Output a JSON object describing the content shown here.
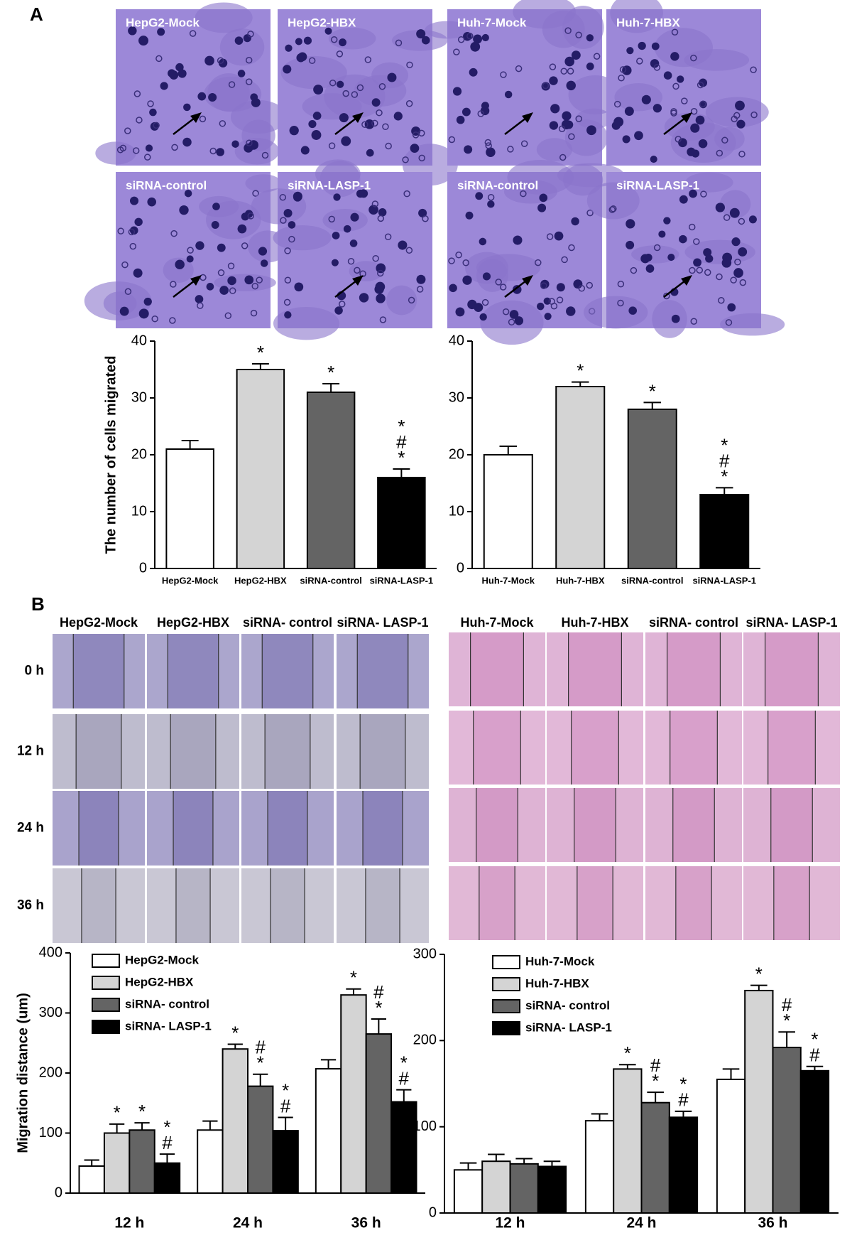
{
  "figure": {
    "panel_labels": [
      "A",
      "B"
    ],
    "panel_a_images": [
      "HepG2-Mock",
      "HepG2-HBX",
      "Huh-7-Mock",
      "Huh-7-HBX",
      "siRNA-control",
      "siRNA-LASP-1",
      "siRNA-control",
      "siRNA-LASP-1"
    ],
    "panel_b_columns": [
      "HepG2-Mock",
      "HepG2-HBX",
      "siRNA- control",
      "siRNA- LASP-1",
      "Huh-7-Mock",
      "Huh-7-HBX",
      "siRNA- control",
      "siRNA- LASP-1"
    ],
    "panel_b_rows": [
      "0 h",
      "12 h",
      "24 h",
      "36 h"
    ]
  },
  "chart_data": [
    {
      "type": "bar",
      "y_label": "The number of cells migrated",
      "categories": [
        "HepG2-Mock",
        "HepG2-HBX",
        "siRNA-control",
        "siRNA-LASP-1"
      ],
      "values": [
        21,
        35,
        31,
        16
      ],
      "errors": [
        1.5,
        1,
        1.5,
        1.5
      ],
      "colors": [
        "#ffffff",
        "#d4d4d4",
        "#646464",
        "#000000"
      ],
      "ylim": [
        0,
        40
      ],
      "yticks": [
        0,
        10,
        20,
        30,
        40
      ],
      "annotations": [
        {
          "category": 1,
          "text": [
            "*"
          ]
        },
        {
          "category": 2,
          "text": [
            "*"
          ]
        },
        {
          "category": 3,
          "text": [
            "*",
            "#",
            "*"
          ]
        }
      ]
    },
    {
      "type": "bar",
      "categories": [
        "Huh-7-Mock",
        "Huh-7-HBX",
        "siRNA-control",
        "siRNA-LASP-1"
      ],
      "values": [
        20,
        32,
        28,
        13
      ],
      "errors": [
        1.5,
        0.8,
        1.2,
        1.2
      ],
      "colors": [
        "#ffffff",
        "#d4d4d4",
        "#646464",
        "#000000"
      ],
      "ylim": [
        0,
        40
      ],
      "yticks": [
        0,
        10,
        20,
        30,
        40
      ],
      "annotations": [
        {
          "category": 1,
          "text": [
            "*"
          ]
        },
        {
          "category": 2,
          "text": [
            "*"
          ]
        },
        {
          "category": 3,
          "text": [
            "*",
            "#",
            "*"
          ]
        }
      ]
    },
    {
      "type": "bar",
      "y_label": "Migration distance (um)",
      "categories": [
        "12 h",
        "24 h",
        "36 h"
      ],
      "series": [
        {
          "name": "HepG2-Mock",
          "color": "#ffffff",
          "values": [
            45,
            105,
            207
          ],
          "errors": [
            10,
            15,
            15
          ]
        },
        {
          "name": "HepG2-HBX",
          "color": "#d4d4d4",
          "values": [
            100,
            240,
            330
          ],
          "errors": [
            15,
            8,
            10
          ]
        },
        {
          "name": "siRNA- control",
          "color": "#646464",
          "values": [
            105,
            178,
            265
          ],
          "errors": [
            12,
            20,
            25
          ]
        },
        {
          "name": "siRNA- LASP-1",
          "color": "#000000",
          "values": [
            50,
            104,
            152
          ],
          "errors": [
            15,
            22,
            20
          ]
        }
      ],
      "ylim": [
        0,
        400
      ],
      "yticks": [
        0,
        100,
        200,
        300,
        400
      ],
      "legend": "top-left",
      "annotations": [
        {
          "category": 0,
          "series": 1,
          "text": [
            "*"
          ]
        },
        {
          "category": 0,
          "series": 2,
          "text": [
            "*"
          ]
        },
        {
          "category": 0,
          "series": 3,
          "text": [
            "*",
            "#"
          ]
        },
        {
          "category": 1,
          "series": 1,
          "text": [
            "*"
          ]
        },
        {
          "category": 1,
          "series": 2,
          "text": [
            "#",
            "*"
          ]
        },
        {
          "category": 1,
          "series": 3,
          "text": [
            "*",
            "#"
          ]
        },
        {
          "category": 2,
          "series": 1,
          "text": [
            "*"
          ]
        },
        {
          "category": 2,
          "series": 2,
          "text": [
            "#",
            "*"
          ]
        },
        {
          "category": 2,
          "series": 3,
          "text": [
            "*",
            "#"
          ]
        }
      ]
    },
    {
      "type": "bar",
      "categories": [
        "12 h",
        "24 h",
        "36 h"
      ],
      "series": [
        {
          "name": "Huh-7-Mock",
          "color": "#ffffff",
          "values": [
            50,
            107,
            155
          ],
          "errors": [
            8,
            8,
            12
          ]
        },
        {
          "name": "Huh-7-HBX",
          "color": "#d4d4d4",
          "values": [
            60,
            167,
            258
          ],
          "errors": [
            8,
            5,
            6
          ]
        },
        {
          "name": "siRNA- control",
          "color": "#646464",
          "values": [
            57,
            128,
            192
          ],
          "errors": [
            6,
            12,
            18
          ]
        },
        {
          "name": "siRNA- LASP-1",
          "color": "#000000",
          "values": [
            54,
            111,
            165
          ],
          "errors": [
            6,
            7,
            5
          ]
        }
      ],
      "ylim": [
        0,
        300
      ],
      "yticks": [
        0,
        100,
        200,
        300
      ],
      "legend": "top-left",
      "annotations": [
        {
          "category": 1,
          "series": 1,
          "text": [
            "*"
          ]
        },
        {
          "category": 1,
          "series": 2,
          "text": [
            "#",
            "*"
          ]
        },
        {
          "category": 1,
          "series": 3,
          "text": [
            "*",
            "#"
          ]
        },
        {
          "category": 2,
          "series": 1,
          "text": [
            "*"
          ]
        },
        {
          "category": 2,
          "series": 2,
          "text": [
            "#",
            "*"
          ]
        },
        {
          "category": 2,
          "series": 3,
          "text": [
            "*",
            "#"
          ]
        }
      ]
    }
  ]
}
